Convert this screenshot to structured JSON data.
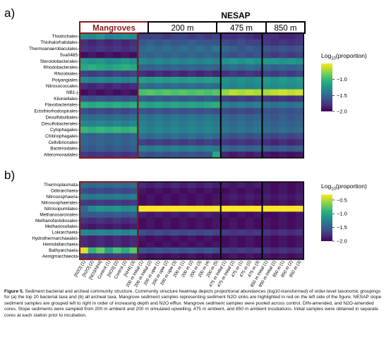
{
  "figure": {
    "panel_a_label": "a)",
    "panel_b_label": "b)",
    "group_title_nesap": "NESAP",
    "groups": [
      "Mangroves",
      "200 m",
      "475 m",
      "850 m"
    ],
    "colorbar_label_main": "Log",
    "colorbar_label_sub": "10",
    "colorbar_label_tail": "(proportion)",
    "colors": {
      "mangrove_highlight": "#8b1a1a",
      "group_border": "#000000",
      "viridis": [
        "#440154",
        "#472d7b",
        "#3b528b",
        "#2c728e",
        "#21918c",
        "#28ae80",
        "#5ec962",
        "#addc30",
        "#fde725"
      ]
    }
  },
  "caption": {
    "lead": "Figure 5.",
    "body": "Sediment bacterial and archeal community structure. Community structure heatmap depicts proportional abundances (log10-transformed) of order-level taxonomic groupings for (a) the top 20 bacterial taxa and (b) all archeal taxa. Mangrove sediment samples representing sediment N2O sinks are highlighted in red on the left side of the figure. NESAP slope sediment samples are grouped left to right in order of increasing depth and N2O efflux. Mangrove sediment samples were pooled across control, DIN-amended, and N2O-amended cores. Slope sediments were sampled from 200 m ambient and 200 m simulated upwelling, 475 m ambient, and 850 m ambient incubations. Initial samples were obtained in separate cores at each station prior to incubation."
  },
  "chart_data": [
    {
      "type": "heatmap",
      "panel": "a",
      "colorbar": {
        "min": -2.0,
        "max": -0.5,
        "ticks": [
          -1.0,
          -1.5,
          -2.0
        ]
      },
      "rows": [
        "Thiotrichales",
        "Thiohalorhabdales",
        "Thermoanaerobaculales",
        "Sva0485",
        "Steroidobacterales",
        "Rhodobacterales",
        "Rhizobiales",
        "Polyangiales",
        "Nitrosococcales",
        "NB1-j",
        "Kiloniellales",
        "Flavobacteriales",
        "Ectothiorhodospirales",
        "Desulfobulbales",
        "Desulfobacterales",
        "Cytophagales",
        "Chitinophagales",
        "Cellvibrionales",
        "Bacteroidales",
        "Alteromonadales"
      ],
      "values": [
        [
          -1.25,
          -1.3,
          -1.2,
          -1.35,
          -1.3,
          -1.25,
          -1.3,
          -1.7,
          -1.7,
          -1.7,
          -1.75,
          -1.7,
          -1.7,
          -1.75,
          -1.7,
          -1.75,
          -1.7,
          -1.8,
          -1.8,
          -1.75,
          -1.8,
          -1.85,
          -1.8,
          -1.8,
          -1.85,
          -1.85,
          -1.8
        ],
        [
          -1.8,
          -1.85,
          -1.8,
          -1.85,
          -1.8,
          -1.85,
          -1.8,
          -1.6,
          -1.55,
          -1.6,
          -1.55,
          -1.6,
          -1.6,
          -1.55,
          -1.6,
          -1.6,
          -1.6,
          -1.65,
          -1.7,
          -1.65,
          -1.7,
          -1.7,
          -1.75,
          -1.8,
          -1.75,
          -1.8,
          -1.75
        ],
        [
          -1.75,
          -1.8,
          -1.75,
          -1.8,
          -1.75,
          -1.8,
          -1.75,
          -1.5,
          -1.45,
          -1.5,
          -1.45,
          -1.5,
          -1.45,
          -1.5,
          -1.45,
          -1.5,
          -1.4,
          -1.5,
          -1.55,
          -1.6,
          -1.55,
          -1.6,
          -1.6,
          -1.65,
          -1.6,
          -1.65,
          -1.6
        ],
        [
          -1.95,
          -1.9,
          -1.95,
          -1.9,
          -1.95,
          -1.9,
          -1.95,
          -1.5,
          -1.55,
          -1.5,
          -1.55,
          -1.5,
          -1.55,
          -1.5,
          -1.55,
          -1.5,
          -1.55,
          -1.6,
          -1.65,
          -1.6,
          -1.65,
          -1.6,
          -1.7,
          -1.75,
          -1.7,
          -1.75,
          -1.7
        ],
        [
          -1.2,
          -1.25,
          -1.2,
          -1.3,
          -1.25,
          -1.2,
          -1.25,
          -1.3,
          -1.35,
          -1.3,
          -1.35,
          -1.3,
          -1.35,
          -1.3,
          -1.35,
          -1.3,
          -1.35,
          -1.25,
          -1.2,
          -1.25,
          -1.2,
          -1.25,
          -1.2,
          -1.2,
          -1.25,
          -1.2,
          -1.25
        ],
        [
          -1.1,
          -1.05,
          -1.1,
          -1.15,
          -1.1,
          -1.05,
          -1.1,
          -1.5,
          -1.55,
          -1.5,
          -1.55,
          -1.5,
          -1.55,
          -1.5,
          -1.55,
          -1.5,
          -1.55,
          -1.5,
          -1.45,
          -1.5,
          -1.45,
          -1.5,
          -1.5,
          -1.55,
          -1.5,
          -1.55,
          -1.5
        ],
        [
          -1.7,
          -1.75,
          -1.7,
          -1.75,
          -1.7,
          -1.75,
          -1.7,
          -1.8,
          -1.85,
          -1.8,
          -1.85,
          -1.8,
          -1.85,
          -1.8,
          -1.85,
          -1.8,
          -1.85,
          -1.8,
          -1.75,
          -1.8,
          -1.75,
          -1.8,
          -1.7,
          -1.75,
          -1.7,
          -1.75,
          -1.7
        ],
        [
          -1.3,
          -1.35,
          -1.3,
          -1.35,
          -1.3,
          -1.35,
          -1.3,
          -1.15,
          -1.2,
          -1.15,
          -1.2,
          -1.15,
          -1.2,
          -1.15,
          -1.2,
          -1.15,
          -1.2,
          -1.25,
          -1.3,
          -1.25,
          -1.3,
          -1.25,
          -1.2,
          -1.25,
          -1.2,
          -1.25,
          -1.2
        ],
        [
          -1.8,
          -1.85,
          -1.8,
          -1.85,
          -1.8,
          -1.85,
          -1.8,
          -1.45,
          -1.5,
          -1.45,
          -1.5,
          -1.45,
          -1.5,
          -1.45,
          -1.5,
          -1.45,
          -1.5,
          -1.3,
          -1.35,
          -1.3,
          -1.35,
          -1.3,
          -1.25,
          -1.3,
          -1.25,
          -1.3,
          -1.25
        ],
        [
          -1.95,
          -1.9,
          -1.95,
          -1.9,
          -1.95,
          -1.9,
          -1.95,
          -0.95,
          -0.9,
          -0.95,
          -0.9,
          -0.95,
          -0.9,
          -0.95,
          -0.9,
          -0.95,
          -0.9,
          -0.75,
          -0.65,
          -0.7,
          -0.65,
          -0.7,
          -0.7,
          -0.65,
          -0.6,
          -0.65,
          -0.6
        ],
        [
          -1.6,
          -1.65,
          -1.6,
          -1.65,
          -1.6,
          -1.65,
          -1.6,
          -1.55,
          -1.6,
          -1.55,
          -1.6,
          -1.55,
          -1.6,
          -1.55,
          -1.6,
          -1.55,
          -1.6,
          -1.7,
          -1.75,
          -1.7,
          -1.75,
          -1.7,
          -1.75,
          -1.8,
          -1.75,
          -1.8,
          -1.75
        ],
        [
          -1.05,
          -1.1,
          -1.05,
          -1.1,
          -1.05,
          -1.1,
          -1.05,
          -1.1,
          -1.15,
          -1.1,
          -1.15,
          -1.1,
          -1.15,
          -1.1,
          -1.15,
          -1.1,
          -1.05,
          -1.35,
          -1.4,
          -1.35,
          -1.4,
          -1.35,
          -1.4,
          -1.45,
          -1.4,
          -1.45,
          -1.4
        ],
        [
          -1.65,
          -1.7,
          -1.65,
          -1.7,
          -1.65,
          -1.7,
          -1.65,
          -1.6,
          -1.65,
          -1.6,
          -1.65,
          -1.6,
          -1.65,
          -1.6,
          -1.65,
          -1.6,
          -1.65,
          -1.65,
          -1.7,
          -1.65,
          -1.7,
          -1.65,
          -1.6,
          -1.65,
          -1.6,
          -1.65,
          -1.6
        ],
        [
          -1.45,
          -1.5,
          -1.45,
          -1.5,
          -1.45,
          -1.5,
          -1.45,
          -1.4,
          -1.45,
          -1.4,
          -1.45,
          -1.4,
          -1.45,
          -1.4,
          -1.45,
          -1.4,
          -1.45,
          -1.5,
          -1.55,
          -1.5,
          -1.55,
          -1.5,
          -1.55,
          -1.6,
          -1.55,
          -1.6,
          -1.55
        ],
        [
          -1.3,
          -1.35,
          -1.3,
          -1.35,
          -1.3,
          -1.35,
          -1.3,
          -1.35,
          -1.4,
          -1.35,
          -1.4,
          -1.35,
          -1.4,
          -1.35,
          -1.4,
          -1.35,
          -1.4,
          -1.45,
          -1.5,
          -1.45,
          -1.5,
          -1.45,
          -1.5,
          -1.55,
          -1.5,
          -1.55,
          -1.5
        ],
        [
          -1.0,
          -1.05,
          -1.0,
          -1.05,
          -1.0,
          -1.05,
          -1.0,
          -1.3,
          -1.35,
          -1.3,
          -1.35,
          -1.3,
          -1.35,
          -1.3,
          -1.35,
          -1.3,
          -1.35,
          -1.4,
          -1.45,
          -1.4,
          -1.45,
          -1.4,
          -1.45,
          -1.5,
          -1.45,
          -1.5,
          -1.45
        ],
        [
          -1.5,
          -1.55,
          -1.5,
          -1.55,
          -1.5,
          -1.55,
          -1.5,
          -1.45,
          -1.5,
          -1.45,
          -1.5,
          -1.45,
          -1.5,
          -1.45,
          -1.5,
          -1.45,
          -1.5,
          -1.6,
          -1.65,
          -1.6,
          -1.65,
          -1.6,
          -1.65,
          -1.7,
          -1.65,
          -1.7,
          -1.65
        ],
        [
          -1.5,
          -1.55,
          -1.5,
          -1.55,
          -1.5,
          -1.55,
          -1.5,
          -1.7,
          -1.75,
          -1.7,
          -1.75,
          -1.7,
          -1.75,
          -1.7,
          -1.75,
          -1.7,
          -1.75,
          -1.75,
          -1.8,
          -1.75,
          -1.8,
          -1.75,
          -1.8,
          -1.85,
          -1.8,
          -1.85,
          -1.8
        ],
        [
          -1.55,
          -1.6,
          -1.55,
          -1.6,
          -1.55,
          -1.6,
          -1.55,
          -1.35,
          -1.4,
          -1.35,
          -1.4,
          -1.35,
          -1.4,
          -1.35,
          -1.4,
          -1.35,
          -1.4,
          -1.5,
          -1.55,
          -1.5,
          -1.55,
          -1.5,
          -1.55,
          -1.6,
          -1.55,
          -1.6,
          -1.55
        ],
        [
          -1.75,
          -1.8,
          -1.75,
          -1.8,
          -1.75,
          -1.8,
          -1.75,
          -1.6,
          -1.65,
          -1.6,
          -1.65,
          -1.6,
          -1.65,
          -1.6,
          -1.65,
          -1.6,
          -1.1,
          -1.85,
          -1.9,
          -1.85,
          -1.9,
          -1.85,
          -1.9,
          -1.95,
          -1.9,
          -1.95,
          -1.9
        ]
      ]
    },
    {
      "type": "heatmap",
      "panel": "b",
      "colorbar": {
        "min": -2.0,
        "max": -0.3,
        "ticks": [
          -0.5,
          -1.0,
          -1.5,
          -2.0
        ]
      },
      "rows": [
        "Thermoplasmata",
        "Odinarchaeia",
        "Nitrososphaeria",
        "Nitrososphaerales",
        "Nitrosopumilales",
        "Methanosarcinales",
        "Methanofastidiosales",
        "Methanocellales",
        "Lokiarchaeia",
        "Hydrothermarchaeales",
        "Heimdallarchaeia",
        "Bathyarchaeia",
        "Aenigmarchaeota"
      ],
      "values": [
        [
          -1.4,
          -1.45,
          -1.4,
          -1.45,
          -1.4,
          -1.45,
          -1.4,
          -1.8,
          -1.85,
          -1.8,
          -1.85,
          -1.8,
          -1.85,
          -1.8,
          -1.85,
          -1.8,
          -1.85,
          -1.85,
          -1.9,
          -1.85,
          -1.9,
          -1.85,
          -1.9,
          -1.95,
          -1.9,
          -1.95,
          -1.9
        ],
        [
          -1.6,
          -1.65,
          -1.6,
          -1.65,
          -1.6,
          -1.65,
          -1.6,
          -1.9,
          -1.95,
          -1.9,
          -1.95,
          -1.9,
          -1.95,
          -1.9,
          -1.95,
          -1.9,
          -1.95,
          -1.95,
          -1.9,
          -1.95,
          -1.9,
          -1.95,
          -1.9,
          -1.95,
          -1.9,
          -1.95,
          -1.9
        ],
        [
          -1.3,
          -1.35,
          -1.3,
          -1.35,
          -1.3,
          -1.35,
          -1.3,
          -1.95,
          -1.9,
          -1.95,
          -1.9,
          -1.95,
          -1.9,
          -1.95,
          -1.9,
          -1.95,
          -1.9,
          -1.9,
          -1.85,
          -1.9,
          -1.85,
          -1.9,
          -1.85,
          -1.9,
          -1.85,
          -1.9,
          -1.85
        ],
        [
          -1.7,
          -1.75,
          -1.7,
          -1.75,
          -1.7,
          -1.75,
          -1.7,
          -1.95,
          -1.9,
          -1.95,
          -1.9,
          -1.95,
          -1.9,
          -1.95,
          -1.9,
          -1.95,
          -1.9,
          -1.95,
          -1.9,
          -1.95,
          -1.9,
          -1.95,
          -1.9,
          -1.95,
          -1.9,
          -1.95,
          -1.9
        ],
        [
          -1.4,
          -1.2,
          -1.1,
          -1.15,
          -1.1,
          -1.2,
          -1.15,
          -0.3,
          -0.3,
          -0.3,
          -0.3,
          -0.3,
          -0.3,
          -0.3,
          -0.3,
          -0.3,
          -0.3,
          -0.3,
          -0.3,
          -0.3,
          -0.3,
          -0.3,
          -0.3,
          -0.3,
          -0.3,
          -0.3,
          -0.3
        ],
        [
          -1.5,
          -1.55,
          -1.5,
          -1.55,
          -1.5,
          -1.55,
          -1.5,
          -1.85,
          -1.9,
          -1.85,
          -1.9,
          -1.85,
          -1.9,
          -1.85,
          -1.9,
          -1.85,
          -1.9,
          -1.9,
          -1.95,
          -1.9,
          -1.95,
          -1.9,
          -1.95,
          -1.95,
          -1.9,
          -1.95,
          -1.9
        ],
        [
          -1.75,
          -1.8,
          -1.75,
          -1.8,
          -1.75,
          -1.8,
          -1.75,
          -1.95,
          -1.9,
          -1.95,
          -1.9,
          -1.95,
          -1.9,
          -1.95,
          -1.9,
          -1.95,
          -1.9,
          -1.95,
          -1.9,
          -1.95,
          -1.9,
          -1.95,
          -1.9,
          -1.95,
          -1.9,
          -1.95,
          -1.9
        ],
        [
          -1.85,
          -1.9,
          -1.85,
          -1.9,
          -1.85,
          -1.9,
          -1.85,
          -1.95,
          -1.9,
          -1.95,
          -1.9,
          -1.95,
          -1.9,
          -1.95,
          -1.9,
          -1.95,
          -1.9,
          -1.95,
          -1.9,
          -1.95,
          -1.9,
          -1.95,
          -1.9,
          -1.95,
          -1.9,
          -1.95,
          -1.9
        ],
        [
          -1.2,
          -1.25,
          -1.2,
          -1.25,
          -1.2,
          -1.25,
          -1.2,
          -1.6,
          -1.65,
          -1.6,
          -1.65,
          -1.6,
          -1.65,
          -1.6,
          -1.65,
          -1.6,
          -1.65,
          -1.7,
          -1.75,
          -1.7,
          -1.75,
          -1.7,
          -1.75,
          -1.8,
          -1.75,
          -1.8,
          -1.75
        ],
        [
          -1.8,
          -1.85,
          -1.8,
          -1.85,
          -1.8,
          -1.85,
          -1.8,
          -1.9,
          -1.95,
          -1.9,
          -1.95,
          -1.9,
          -1.95,
          -1.9,
          -1.95,
          -1.9,
          -1.95,
          -1.95,
          -1.9,
          -1.95,
          -1.9,
          -1.95,
          -1.9,
          -1.95,
          -1.9,
          -1.95,
          -1.9
        ],
        [
          -1.8,
          -1.85,
          -1.8,
          -1.85,
          -1.8,
          -1.85,
          -1.8,
          -1.95,
          -1.9,
          -1.95,
          -1.9,
          -1.95,
          -1.9,
          -1.95,
          -1.9,
          -1.95,
          -1.9,
          -1.95,
          -1.9,
          -1.95,
          -1.9,
          -1.95,
          -1.9,
          -1.95,
          -1.9,
          -1.95,
          -1.9
        ],
        [
          -0.4,
          -0.9,
          -0.7,
          -1.0,
          -0.8,
          -0.95,
          -0.75,
          -1.55,
          -1.6,
          -1.55,
          -1.6,
          -1.55,
          -1.6,
          -1.55,
          -1.6,
          -1.55,
          -1.6,
          -1.7,
          -1.75,
          -1.7,
          -1.75,
          -1.7,
          -1.75,
          -1.8,
          -1.75,
          -1.8,
          -1.75
        ],
        [
          -1.7,
          -1.75,
          -1.7,
          -1.75,
          -1.7,
          -1.75,
          -1.7,
          -1.9,
          -1.95,
          -1.9,
          -1.95,
          -1.9,
          -1.95,
          -1.9,
          -1.95,
          -1.9,
          -1.95,
          -1.95,
          -1.9,
          -1.95,
          -1.9,
          -1.95,
          -1.9,
          -1.95,
          -1.9,
          -1.95,
          -1.9
        ]
      ]
    }
  ],
  "columns": [
    "[N2O] (1)",
    "[N2O] (2)",
    "[NO3/NH4]",
    "Control (1)",
    "[NO3] (2)",
    "Control (2)",
    "[NH4] (3)",
    "200 m Initial (1)",
    "200 m Initial (2)",
    "200 m upw (1)",
    "200 m upw (2)",
    "200 m upw (3)",
    "200 m (1)",
    "200 m (2)",
    "200 m (3)",
    "200 m (4)",
    "200 m (5)",
    "475 m Initial (1)",
    "475 m Initial (2)",
    "475 m (1)",
    "475 m (2)",
    "475 m (3)",
    "850 m Initial (1)",
    "850 m Initial (2)",
    "850 m (1)",
    "850 m (2)",
    "850 m (3)"
  ]
}
